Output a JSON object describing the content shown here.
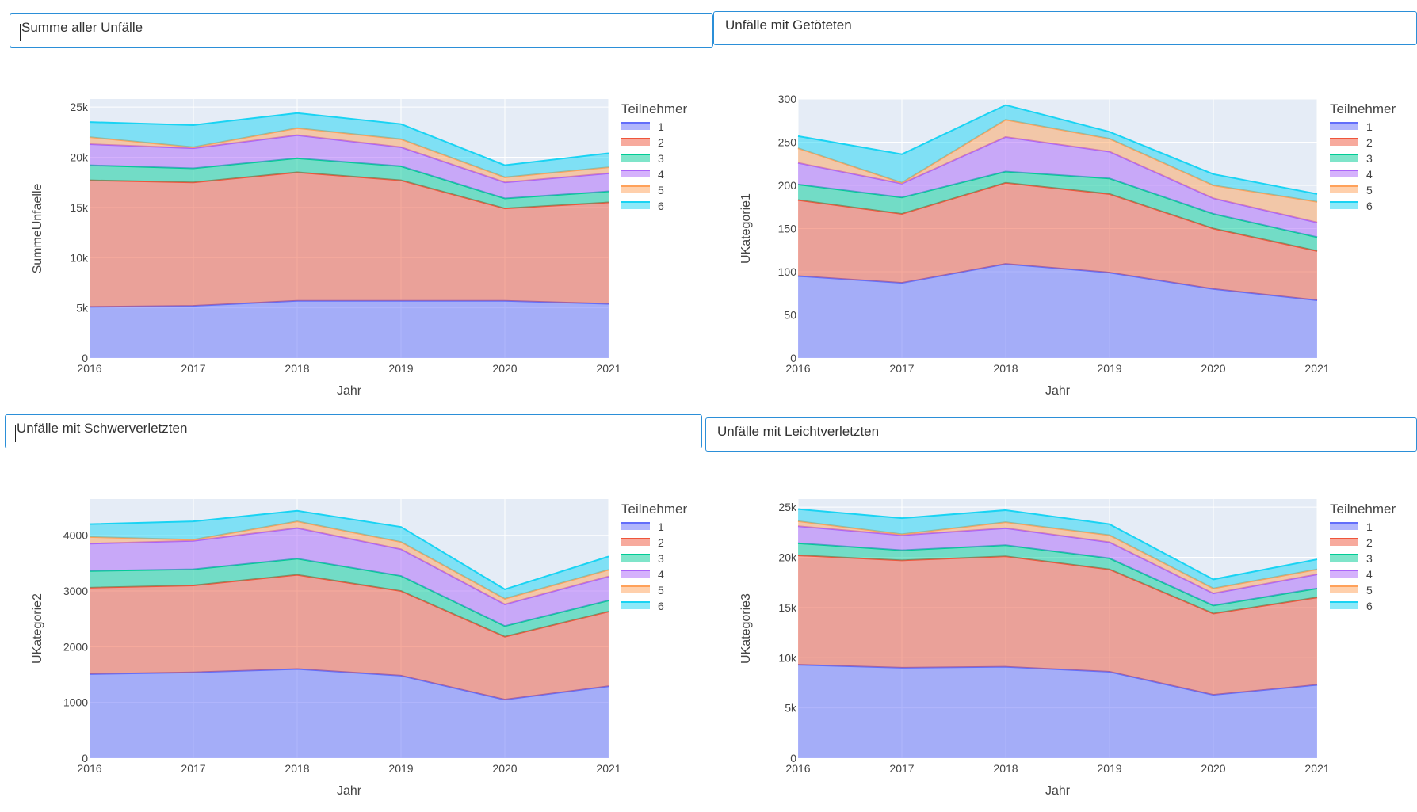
{
  "panels": [
    {
      "id": "summe",
      "title": "Summe aller Unfälle",
      "chart_data": {
        "type": "area",
        "xlabel": "Jahr",
        "ylabel": "SummeUnfaelle",
        "x": [
          2016,
          2017,
          2018,
          2019,
          2020,
          2021
        ],
        "ylim": [
          0,
          25800
        ],
        "yticks": [
          0,
          5000,
          10000,
          15000,
          20000,
          25000
        ],
        "ytick_labels": [
          "0",
          "5k",
          "10k",
          "15k",
          "20k",
          "25k"
        ],
        "legend_title": "Teilnehmer",
        "legend_position": "right",
        "grid": true,
        "series": [
          {
            "name": "1",
            "color": "#636efa",
            "values": [
              5100,
              5200,
              5700,
              5700,
              5700,
              5400
            ]
          },
          {
            "name": "2",
            "color": "#ef553b",
            "values": [
              12600,
              12300,
              12800,
              12000,
              9200,
              10100
            ]
          },
          {
            "name": "3",
            "color": "#00cc96",
            "values": [
              1500,
              1400,
              1400,
              1400,
              1000,
              1100
            ]
          },
          {
            "name": "4",
            "color": "#ab63fa",
            "values": [
              2100,
              2000,
              2300,
              1900,
              1600,
              1800
            ]
          },
          {
            "name": "5",
            "color": "#ffa15a",
            "values": [
              700,
              100,
              700,
              800,
              500,
              600
            ]
          },
          {
            "name": "6",
            "color": "#19d3f3",
            "values": [
              1500,
              2200,
              1500,
              1500,
              1200,
              1400
            ]
          }
        ]
      }
    },
    {
      "id": "getoetet",
      "title": "Unfälle mit Getöteten",
      "chart_data": {
        "type": "area",
        "xlabel": "Jahr",
        "ylabel": "UKategorie1",
        "x": [
          2016,
          2017,
          2018,
          2019,
          2020,
          2021
        ],
        "ylim": [
          0,
          300
        ],
        "yticks": [
          0,
          50,
          100,
          150,
          200,
          250,
          300
        ],
        "ytick_labels": [
          "0",
          "50",
          "100",
          "150",
          "200",
          "250",
          "300"
        ],
        "legend_title": "Teilnehmer",
        "legend_position": "right",
        "grid": true,
        "series": [
          {
            "name": "1",
            "color": "#636efa",
            "values": [
              95,
              87,
              109,
              99,
              80,
              67
            ]
          },
          {
            "name": "2",
            "color": "#ef553b",
            "values": [
              88,
              80,
              94,
              91,
              70,
              57
            ]
          },
          {
            "name": "3",
            "color": "#00cc96",
            "values": [
              18,
              19,
              13,
              18,
              17,
              16
            ]
          },
          {
            "name": "4",
            "color": "#ab63fa",
            "values": [
              25,
              16,
              40,
              31,
              18,
              17
            ]
          },
          {
            "name": "5",
            "color": "#ffa15a",
            "values": [
              17,
              1,
              20,
              15,
              15,
              24
            ]
          },
          {
            "name": "6",
            "color": "#19d3f3",
            "values": [
              14,
              33,
              17,
              8,
              13,
              9
            ]
          }
        ]
      }
    },
    {
      "id": "schwer",
      "title": "Unfälle mit Schwerverletzten",
      "chart_data": {
        "type": "area",
        "xlabel": "Jahr",
        "ylabel": "UKategorie2",
        "x": [
          2016,
          2017,
          2018,
          2019,
          2020,
          2021
        ],
        "ylim": [
          0,
          4650
        ],
        "yticks": [
          0,
          1000,
          2000,
          3000,
          4000
        ],
        "ytick_labels": [
          "0",
          "1000",
          "2000",
          "3000",
          "4000"
        ],
        "legend_title": "Teilnehmer",
        "legend_position": "right",
        "grid": true,
        "series": [
          {
            "name": "1",
            "color": "#636efa",
            "values": [
              1510,
              1540,
              1600,
              1480,
              1050,
              1290
            ]
          },
          {
            "name": "2",
            "color": "#ef553b",
            "values": [
              1550,
              1560,
              1690,
              1520,
              1130,
              1340
            ]
          },
          {
            "name": "3",
            "color": "#00cc96",
            "values": [
              300,
              290,
              290,
              270,
              190,
              200
            ]
          },
          {
            "name": "4",
            "color": "#ab63fa",
            "values": [
              490,
              510,
              550,
              480,
              390,
              430
            ]
          },
          {
            "name": "5",
            "color": "#ffa15a",
            "values": [
              120,
              20,
              120,
              130,
              100,
              120
            ]
          },
          {
            "name": "6",
            "color": "#19d3f3",
            "values": [
              230,
              330,
              190,
              270,
              170,
              240
            ]
          }
        ]
      }
    },
    {
      "id": "leicht",
      "title": "Unfälle mit Leichtverletzten",
      "chart_data": {
        "type": "area",
        "xlabel": "Jahr",
        "ylabel": "UKategorie3",
        "x": [
          2016,
          2017,
          2018,
          2019,
          2020,
          2021
        ],
        "ylim": [
          0,
          25800
        ],
        "yticks": [
          0,
          5000,
          10000,
          15000,
          20000,
          25000
        ],
        "ytick_labels": [
          "0",
          "5k",
          "10k",
          "15k",
          "20k",
          "25k"
        ],
        "legend_title": "Teilnehmer",
        "legend_position": "right",
        "grid": true,
        "series": [
          {
            "name": "1",
            "color": "#636efa",
            "values": [
              9300,
              9000,
              9100,
              8600,
              6300,
              7300
            ]
          },
          {
            "name": "2",
            "color": "#ef553b",
            "values": [
              10900,
              10700,
              11000,
              10200,
              8100,
              8700
            ]
          },
          {
            "name": "3",
            "color": "#00cc96",
            "values": [
              1200,
              1000,
              1100,
              1100,
              800,
              900
            ]
          },
          {
            "name": "4",
            "color": "#ab63fa",
            "values": [
              1700,
              1500,
              1700,
              1600,
              1200,
              1400
            ]
          },
          {
            "name": "5",
            "color": "#ffa15a",
            "values": [
              500,
              100,
              600,
              700,
              500,
              500
            ]
          },
          {
            "name": "6",
            "color": "#19d3f3",
            "values": [
              1200,
              1600,
              1200,
              1100,
              900,
              1000
            ]
          }
        ]
      }
    }
  ]
}
